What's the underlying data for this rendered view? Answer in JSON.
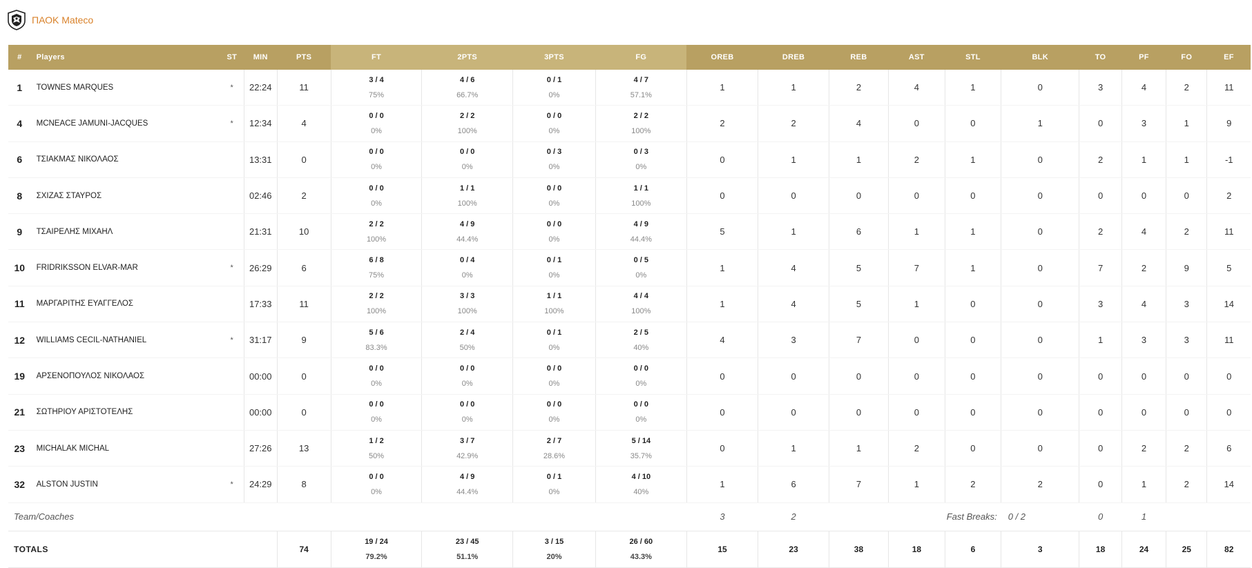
{
  "team": {
    "name": "ΠΑΟΚ Mateco",
    "logo_icon": "paok-eagle-crest"
  },
  "colors": {
    "header_dark": "#b8a062",
    "header_light": "#c8b47a",
    "team_name": "#d9822b"
  },
  "columns": [
    "#",
    "Players",
    "ST",
    "MIN",
    "PTS",
    "FT",
    "2PTS",
    "3PTS",
    "FG",
    "OREB",
    "DREB",
    "REB",
    "AST",
    "STL",
    "BLK",
    "TO",
    "PF",
    "FO",
    "EF"
  ],
  "players": [
    {
      "num": "1",
      "name": "TOWNES MARQUES",
      "st": "*",
      "min": "22:24",
      "pts": "11",
      "ft": "3 / 4",
      "ft_pct": "75%",
      "p2": "4 / 6",
      "p2_pct": "66.7%",
      "p3": "0 / 1",
      "p3_pct": "0%",
      "fg": "4 / 7",
      "fg_pct": "57.1%",
      "oreb": "1",
      "dreb": "1",
      "reb": "2",
      "ast": "4",
      "stl": "1",
      "blk": "0",
      "to": "3",
      "pf": "4",
      "fo": "2",
      "ef": "11"
    },
    {
      "num": "4",
      "name": "MCNEACE JAMUNI-JACQUES",
      "st": "*",
      "min": "12:34",
      "pts": "4",
      "ft": "0 / 0",
      "ft_pct": "0%",
      "p2": "2 / 2",
      "p2_pct": "100%",
      "p3": "0 / 0",
      "p3_pct": "0%",
      "fg": "2 / 2",
      "fg_pct": "100%",
      "oreb": "2",
      "dreb": "2",
      "reb": "4",
      "ast": "0",
      "stl": "0",
      "blk": "1",
      "to": "0",
      "pf": "3",
      "fo": "1",
      "ef": "9"
    },
    {
      "num": "6",
      "name": "ΤΣΙΑΚΜΑΣ ΝΙΚΟΛΑΟΣ",
      "st": "",
      "min": "13:31",
      "pts": "0",
      "ft": "0 / 0",
      "ft_pct": "0%",
      "p2": "0 / 0",
      "p2_pct": "0%",
      "p3": "0 / 3",
      "p3_pct": "0%",
      "fg": "0 / 3",
      "fg_pct": "0%",
      "oreb": "0",
      "dreb": "1",
      "reb": "1",
      "ast": "2",
      "stl": "1",
      "blk": "0",
      "to": "2",
      "pf": "1",
      "fo": "1",
      "ef": "-1"
    },
    {
      "num": "8",
      "name": "ΣΧΙΖΑΣ ΣΤΑΥΡΟΣ",
      "st": "",
      "min": "02:46",
      "pts": "2",
      "ft": "0 / 0",
      "ft_pct": "0%",
      "p2": "1 / 1",
      "p2_pct": "100%",
      "p3": "0 / 0",
      "p3_pct": "0%",
      "fg": "1 / 1",
      "fg_pct": "100%",
      "oreb": "0",
      "dreb": "0",
      "reb": "0",
      "ast": "0",
      "stl": "0",
      "blk": "0",
      "to": "0",
      "pf": "0",
      "fo": "0",
      "ef": "2"
    },
    {
      "num": "9",
      "name": "ΤΣΑΙΡΕΛΗΣ ΜΙΧΑΗΛ",
      "st": "",
      "min": "21:31",
      "pts": "10",
      "ft": "2 / 2",
      "ft_pct": "100%",
      "p2": "4 / 9",
      "p2_pct": "44.4%",
      "p3": "0 / 0",
      "p3_pct": "0%",
      "fg": "4 / 9",
      "fg_pct": "44.4%",
      "oreb": "5",
      "dreb": "1",
      "reb": "6",
      "ast": "1",
      "stl": "1",
      "blk": "0",
      "to": "2",
      "pf": "4",
      "fo": "2",
      "ef": "11"
    },
    {
      "num": "10",
      "name": "FRIDRIKSSON ELVAR-MAR",
      "st": "*",
      "min": "26:29",
      "pts": "6",
      "ft": "6 / 8",
      "ft_pct": "75%",
      "p2": "0 / 4",
      "p2_pct": "0%",
      "p3": "0 / 1",
      "p3_pct": "0%",
      "fg": "0 / 5",
      "fg_pct": "0%",
      "oreb": "1",
      "dreb": "4",
      "reb": "5",
      "ast": "7",
      "stl": "1",
      "blk": "0",
      "to": "7",
      "pf": "2",
      "fo": "9",
      "ef": "5"
    },
    {
      "num": "11",
      "name": "ΜΑΡΓΑΡΙΤΗΣ ΕΥΑΓΓΕΛΟΣ",
      "st": "",
      "min": "17:33",
      "pts": "11",
      "ft": "2 / 2",
      "ft_pct": "100%",
      "p2": "3 / 3",
      "p2_pct": "100%",
      "p3": "1 / 1",
      "p3_pct": "100%",
      "fg": "4 / 4",
      "fg_pct": "100%",
      "oreb": "1",
      "dreb": "4",
      "reb": "5",
      "ast": "1",
      "stl": "0",
      "blk": "0",
      "to": "3",
      "pf": "4",
      "fo": "3",
      "ef": "14"
    },
    {
      "num": "12",
      "name": "WILLIAMS CECIL-NATHANIEL",
      "st": "*",
      "min": "31:17",
      "pts": "9",
      "ft": "5 / 6",
      "ft_pct": "83.3%",
      "p2": "2 / 4",
      "p2_pct": "50%",
      "p3": "0 / 1",
      "p3_pct": "0%",
      "fg": "2 / 5",
      "fg_pct": "40%",
      "oreb": "4",
      "dreb": "3",
      "reb": "7",
      "ast": "0",
      "stl": "0",
      "blk": "0",
      "to": "1",
      "pf": "3",
      "fo": "3",
      "ef": "11"
    },
    {
      "num": "19",
      "name": "ΑΡΣΕΝΟΠΟΥΛΟΣ ΝΙΚΟΛΑΟΣ",
      "st": "",
      "min": "00:00",
      "pts": "0",
      "ft": "0 / 0",
      "ft_pct": "0%",
      "p2": "0 / 0",
      "p2_pct": "0%",
      "p3": "0 / 0",
      "p3_pct": "0%",
      "fg": "0 / 0",
      "fg_pct": "0%",
      "oreb": "0",
      "dreb": "0",
      "reb": "0",
      "ast": "0",
      "stl": "0",
      "blk": "0",
      "to": "0",
      "pf": "0",
      "fo": "0",
      "ef": "0"
    },
    {
      "num": "21",
      "name": "ΣΩΤΗΡΙΟΥ ΑΡΙΣΤΟΤΕΛΗΣ",
      "st": "",
      "min": "00:00",
      "pts": "0",
      "ft": "0 / 0",
      "ft_pct": "0%",
      "p2": "0 / 0",
      "p2_pct": "0%",
      "p3": "0 / 0",
      "p3_pct": "0%",
      "fg": "0 / 0",
      "fg_pct": "0%",
      "oreb": "0",
      "dreb": "0",
      "reb": "0",
      "ast": "0",
      "stl": "0",
      "blk": "0",
      "to": "0",
      "pf": "0",
      "fo": "0",
      "ef": "0"
    },
    {
      "num": "23",
      "name": "MICHALAK MICHAL",
      "st": "",
      "min": "27:26",
      "pts": "13",
      "ft": "1 / 2",
      "ft_pct": "50%",
      "p2": "3 / 7",
      "p2_pct": "42.9%",
      "p3": "2 / 7",
      "p3_pct": "28.6%",
      "fg": "5 / 14",
      "fg_pct": "35.7%",
      "oreb": "0",
      "dreb": "1",
      "reb": "1",
      "ast": "2",
      "stl": "0",
      "blk": "0",
      "to": "0",
      "pf": "2",
      "fo": "2",
      "ef": "6"
    },
    {
      "num": "32",
      "name": "ALSTON JUSTIN",
      "st": "*",
      "min": "24:29",
      "pts": "8",
      "ft": "0 / 0",
      "ft_pct": "0%",
      "p2": "4 / 9",
      "p2_pct": "44.4%",
      "p3": "0 / 1",
      "p3_pct": "0%",
      "fg": "4 / 10",
      "fg_pct": "40%",
      "oreb": "1",
      "dreb": "6",
      "reb": "7",
      "ast": "1",
      "stl": "2",
      "blk": "2",
      "to": "0",
      "pf": "1",
      "fo": "2",
      "ef": "14"
    }
  ],
  "team_row": {
    "label": "Team/Coaches",
    "oreb": "3",
    "dreb": "2",
    "fast_breaks_label": "Fast Breaks:",
    "fast_breaks_value": "0 / 2",
    "to": "0",
    "pf": "1"
  },
  "totals": {
    "label": "TOTALS",
    "pts": "74",
    "ft": "19 / 24",
    "ft_pct": "79.2%",
    "p2": "23 / 45",
    "p2_pct": "51.1%",
    "p3": "3 / 15",
    "p3_pct": "20%",
    "fg": "26 / 60",
    "fg_pct": "43.3%",
    "oreb": "15",
    "dreb": "23",
    "reb": "38",
    "ast": "18",
    "stl": "6",
    "blk": "3",
    "to": "18",
    "pf": "24",
    "fo": "25",
    "ef": "82"
  }
}
